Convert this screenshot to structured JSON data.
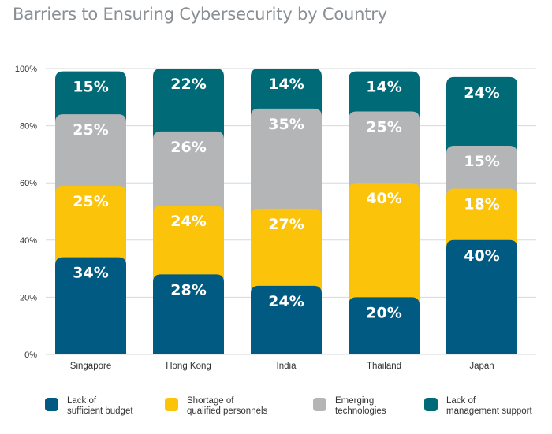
{
  "chart_data": {
    "type": "bar",
    "stacked": true,
    "title": "Barriers to Ensuring Cybersecurity by Country",
    "categories": [
      "Singapore",
      "Hong Kong",
      "India",
      "Thailand",
      "Japan"
    ],
    "y_ticks": [
      "0%",
      "20%",
      "40%",
      "60%",
      "80%",
      "100%"
    ],
    "ylim": [
      0,
      100
    ],
    "grid": true,
    "legend_position": "bottom",
    "series": [
      {
        "name": "Lack of sufficient budget",
        "color": "#005a82",
        "values": [
          34,
          28,
          24,
          20,
          40
        ],
        "labels": [
          "34%",
          "28%",
          "24%",
          "20%",
          "40%"
        ]
      },
      {
        "name": "Shortage of qualified personnels",
        "color": "#fcc30b",
        "values": [
          25,
          24,
          27,
          40,
          18
        ],
        "labels": [
          "25%",
          "24%",
          "27%",
          "40%",
          "18%"
        ]
      },
      {
        "name": "Emerging technologies",
        "color": "#b3b5b7",
        "values": [
          25,
          26,
          35,
          25,
          15
        ],
        "labels": [
          "25%",
          "26%",
          "35%",
          "25%",
          "15%"
        ]
      },
      {
        "name": "Lack of management support",
        "color": "#006a77",
        "values": [
          15,
          22,
          14,
          14,
          24
        ],
        "labels": [
          "15%",
          "22%",
          "14%",
          "14%",
          "24%"
        ]
      }
    ]
  },
  "legend": [
    {
      "line1": "Lack of",
      "line2": "sufficient budget",
      "color": "#005a82",
      "icon": "legend-swatch"
    },
    {
      "line1": "Shortage of",
      "line2": "qualified personnels",
      "color": "#fcc30b",
      "icon": "legend-swatch"
    },
    {
      "line1": "Emerging",
      "line2": "technologies",
      "color": "#b3b5b7",
      "icon": "legend-swatch"
    },
    {
      "line1": "Lack of",
      "line2": "management support",
      "color": "#006a77",
      "icon": "legend-swatch"
    }
  ]
}
